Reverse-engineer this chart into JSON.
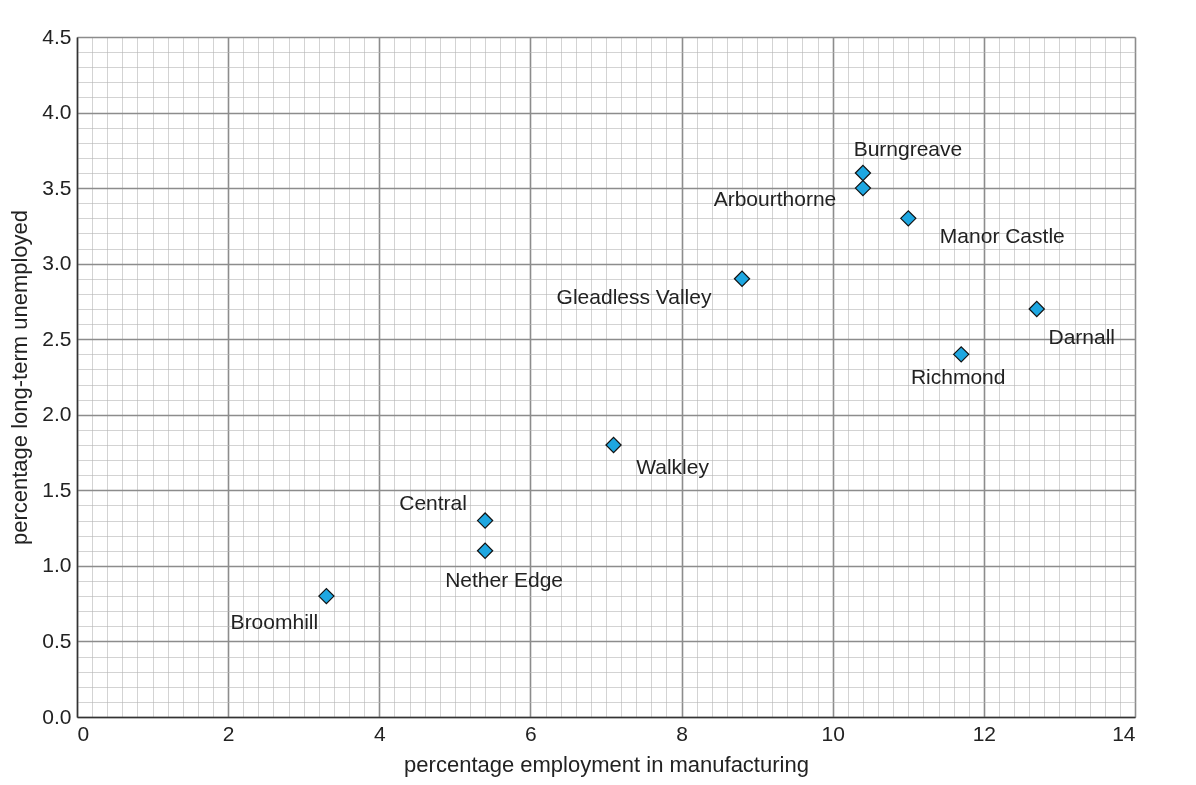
{
  "chart_data": {
    "type": "scatter",
    "xlabel": "percentage employment in manufacturing",
    "ylabel": "percentage long-term unemployed",
    "x": [
      10.4,
      10.4,
      11.0,
      8.8,
      12.7,
      11.7,
      7.1,
      5.4,
      5.4,
      3.3
    ],
    "values": [
      3.6,
      3.5,
      3.3,
      2.9,
      2.7,
      2.4,
      1.8,
      1.3,
      1.1,
      0.8
    ],
    "color": "#1ea7e1",
    "marker": "diamond",
    "grid": true,
    "xlim": [
      0,
      14
    ],
    "ylim": [
      0,
      4.5
    ],
    "xticks": [
      0,
      {
        "value": 0.2,
        "label": null
      },
      {
        "value": 0.4,
        "label": null
      },
      {
        "value": 0.6,
        "label": null
      },
      {
        "value": 0.8,
        "label": null
      },
      {
        "value": 1,
        "label": null
      },
      {
        "value": 1.2,
        "label": null
      },
      {
        "value": 1.4,
        "label": null
      },
      {
        "value": 1.6,
        "label": null
      },
      {
        "value": 1.8,
        "label": null
      },
      2,
      {
        "value": 2.2,
        "label": null
      },
      {
        "value": 2.4,
        "label": null
      },
      {
        "value": 2.6,
        "label": null
      },
      {
        "value": 2.8,
        "label": null
      },
      {
        "value": 3,
        "label": null
      },
      {
        "value": 3.2,
        "label": null
      },
      {
        "value": 3.4,
        "label": null
      },
      {
        "value": 3.6,
        "label": null
      },
      {
        "value": 3.8,
        "label": null
      },
      4,
      {
        "value": 4.2,
        "label": null
      },
      {
        "value": 4.4,
        "label": null
      },
      {
        "value": 4.6,
        "label": null
      },
      {
        "value": 4.8,
        "label": null
      },
      {
        "value": 5,
        "label": null
      },
      {
        "value": 5.2,
        "label": null
      },
      {
        "value": 5.4,
        "label": null
      },
      {
        "value": 5.6,
        "label": null
      },
      {
        "value": 5.8,
        "label": null
      },
      6,
      {
        "value": 6.2,
        "label": null
      },
      {
        "value": 6.4,
        "label": null
      },
      {
        "value": 6.6,
        "label": null
      },
      {
        "value": 6.8,
        "label": null
      },
      {
        "value": 7,
        "label": null
      },
      {
        "value": 7.2,
        "label": null
      },
      {
        "value": 7.4,
        "label": null
      },
      {
        "value": 7.6,
        "label": null
      },
      {
        "value": 7.8,
        "label": null
      },
      8,
      {
        "value": 8.2,
        "label": null
      },
      {
        "value": 8.4,
        "label": null
      },
      {
        "value": 8.6,
        "label": null
      },
      {
        "value": 8.8,
        "label": null
      },
      {
        "value": 9,
        "label": null
      },
      {
        "value": 9.2,
        "label": null
      },
      {
        "value": 9.4,
        "label": null
      },
      {
        "value": 9.6,
        "label": null
      },
      {
        "value": 9.8,
        "label": null
      },
      10,
      {
        "value": 10.2,
        "label": null
      },
      {
        "value": 10.4,
        "label": null
      },
      {
        "value": 10.6,
        "label": null
      },
      {
        "value": 10.8,
        "label": null
      },
      {
        "value": 11,
        "label": null
      },
      {
        "value": 11.2,
        "label": null
      },
      {
        "value": 11.4,
        "label": null
      },
      {
        "value": 11.6,
        "label": null
      },
      {
        "value": 11.8,
        "label": null
      },
      12,
      {
        "value": 12.2,
        "label": null
      },
      {
        "value": 12.4,
        "label": null
      },
      {
        "value": 12.6,
        "label": null
      },
      {
        "value": 12.8,
        "label": null
      },
      {
        "value": 13,
        "label": null
      },
      {
        "value": 13.2,
        "label": null
      },
      {
        "value": 13.4,
        "label": null
      },
      {
        "value": 13.6,
        "label": null
      },
      {
        "value": 13.8,
        "label": null
      },
      14
    ],
    "yticks": [
      {
        "value": 0,
        "label": "0.0"
      },
      {
        "value": 0.1,
        "label": null
      },
      {
        "value": 0.2,
        "label": null
      },
      {
        "value": 0.3,
        "label": null
      },
      {
        "value": 0.4,
        "label": null
      },
      0.5,
      {
        "value": 0.6,
        "label": null
      },
      {
        "value": 0.7,
        "label": null
      },
      {
        "value": 0.8,
        "label": null
      },
      {
        "value": 0.9,
        "label": null
      },
      {
        "value": 1,
        "label": "1.0"
      },
      {
        "value": 1.1,
        "label": null
      },
      {
        "value": 1.2,
        "label": null
      },
      {
        "value": 1.3,
        "label": null
      },
      {
        "value": 1.4,
        "label": null
      },
      1.5,
      {
        "value": 1.6,
        "label": null
      },
      {
        "value": 1.7,
        "label": null
      },
      {
        "value": 1.8,
        "label": null
      },
      {
        "value": 1.9,
        "label": null
      },
      {
        "value": 2,
        "label": "2.0"
      },
      {
        "value": 2.1,
        "label": null
      },
      {
        "value": 2.2,
        "label": null
      },
      {
        "value": 2.3,
        "label": null
      },
      {
        "value": 2.4,
        "label": null
      },
      2.5,
      {
        "value": 2.6,
        "label": null
      },
      {
        "value": 2.7,
        "label": null
      },
      {
        "value": 2.8,
        "label": null
      },
      {
        "value": 2.9,
        "label": null
      },
      {
        "value": 3,
        "label": "3.0"
      },
      {
        "value": 3.1,
        "label": null
      },
      {
        "value": 3.2,
        "label": null
      },
      {
        "value": 3.3,
        "label": null
      },
      {
        "value": 3.4,
        "label": null
      },
      3.5,
      {
        "value": 3.6,
        "label": null
      },
      {
        "value": 3.7,
        "label": null
      },
      {
        "value": 3.8,
        "label": null
      },
      {
        "value": 3.9,
        "label": null
      },
      {
        "value": 4,
        "label": "4.0"
      },
      {
        "value": 4.1,
        "label": null
      },
      {
        "value": 4.2,
        "label": null
      },
      {
        "value": 4.3,
        "label": null
      },
      {
        "value": 4.4,
        "label": null
      },
      4.5
    ],
    "annotations": [
      {
        "text": "Burngreave",
        "x": 10.4,
        "y": 3.6
      },
      {
        "text": "Arbourthorne",
        "x": 10.4,
        "y": 3.5
      },
      {
        "text": "Manor Castle",
        "x": 11.0,
        "y": 3.3
      },
      {
        "text": "Gleadless Valley",
        "x": 8.8,
        "y": 2.9
      },
      {
        "text": "Darnall",
        "x": 12.7,
        "y": 2.7
      },
      {
        "text": "Richmond",
        "x": 11.7,
        "y": 2.4
      },
      {
        "text": "Walkley",
        "x": 7.1,
        "y": 1.8
      },
      {
        "text": "Central",
        "x": 5.4,
        "y": 1.3
      },
      {
        "text": "Nether Edge",
        "x": 5.4,
        "y": 1.1
      },
      {
        "text": "Broomhill",
        "x": 3.3,
        "y": 0.8
      }
    ]
  }
}
